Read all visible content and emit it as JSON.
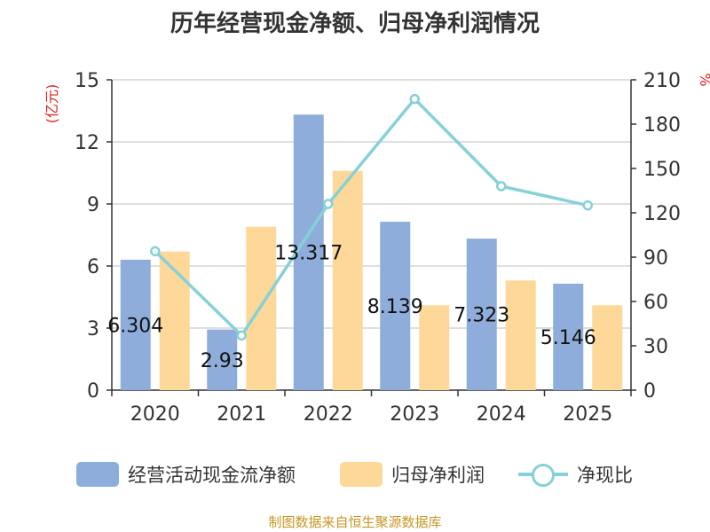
{
  "title": "历年经营现金净额、归母净利润情况",
  "source": "制图数据来自恒生聚源数据库",
  "colors": {
    "cash": "#8eadda",
    "profit": "#fdd898",
    "ratio": "#86d1d9",
    "axis_unit": "#e02020"
  },
  "chart_data": {
    "type": "bar",
    "title": "历年经营现金净额、归母净利润情况",
    "categories": [
      "2020",
      "2021",
      "2022",
      "2023",
      "2024",
      "2025"
    ],
    "y_left": {
      "label": "(亿元)",
      "ylim": [
        0,
        15
      ],
      "ticks": [
        0,
        3,
        6,
        9,
        12,
        15
      ]
    },
    "y_right": {
      "label": "%",
      "ylim": [
        0,
        210
      ],
      "ticks": [
        0,
        30,
        60,
        90,
        120,
        150,
        180,
        210
      ]
    },
    "grid": true,
    "legend_position": "bottom",
    "series": [
      {
        "name": "经营活动现金流净额",
        "type": "bar",
        "axis": "left",
        "values": [
          6.304,
          2.93,
          13.317,
          8.139,
          7.323,
          5.146
        ],
        "labels": [
          "6.304",
          "2.93",
          "13.317",
          "8.139",
          "7.323",
          "5.146"
        ]
      },
      {
        "name": "归母净利润",
        "type": "bar",
        "axis": "left",
        "values": [
          6.7,
          7.9,
          10.6,
          4.1,
          5.3,
          4.1
        ]
      },
      {
        "name": "净现比",
        "type": "line",
        "axis": "right",
        "values": [
          94,
          37,
          126,
          197,
          138,
          125
        ]
      }
    ]
  }
}
